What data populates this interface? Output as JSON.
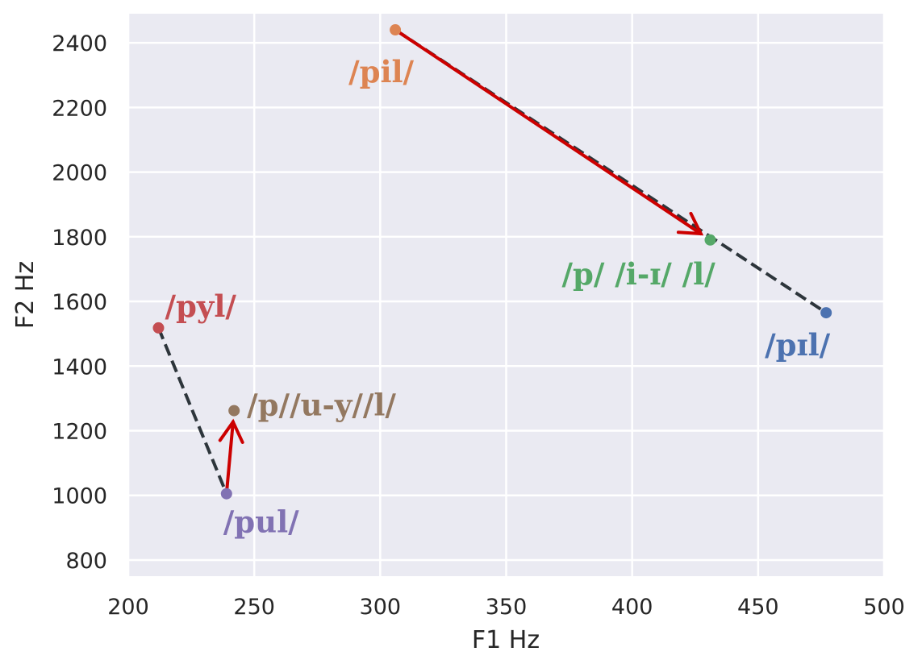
{
  "chart_data": {
    "type": "scatter",
    "xlabel": "F1 Hz",
    "ylabel": "F2 Hz",
    "xlim": [
      200,
      500
    ],
    "ylim": [
      750,
      2490
    ],
    "xticks": [
      200,
      250,
      300,
      350,
      400,
      450,
      500
    ],
    "yticks": [
      800,
      1000,
      1200,
      1400,
      1600,
      1800,
      2000,
      2200,
      2400
    ],
    "grid": true,
    "background": "#eaeaf2",
    "points": [
      {
        "id": "pil",
        "label": "/pil/",
        "x": 306,
        "y": 2440,
        "color": "#dd8452"
      },
      {
        "id": "pIl",
        "label": "/pɪl/",
        "x": 477,
        "y": 1565,
        "color": "#4c72b0"
      },
      {
        "id": "pi-I-l",
        "label": "/p/ /i-ɪ/ /l/",
        "x": 431,
        "y": 1790,
        "color": "#55a868"
      },
      {
        "id": "pyl",
        "label": "/pyl/",
        "x": 212,
        "y": 1518,
        "color": "#c44e52"
      },
      {
        "id": "pul",
        "label": "/pul/",
        "x": 239,
        "y": 1005,
        "color": "#8172b3"
      },
      {
        "id": "pu-y-l",
        "label": "/p//u-y//l/",
        "x": 242,
        "y": 1262,
        "color": "#937860"
      }
    ],
    "dashed_lines": [
      {
        "from": "pil",
        "to": "pIl",
        "color": "#2d353b"
      },
      {
        "from": "pyl",
        "to": "pul",
        "color": "#2d353b"
      }
    ],
    "arrows": [
      {
        "from": "pil",
        "to": "pi-I-l",
        "color": "#cc0000"
      },
      {
        "from": "pul",
        "to": "pu-y-l",
        "color": "#cc0000"
      }
    ]
  }
}
